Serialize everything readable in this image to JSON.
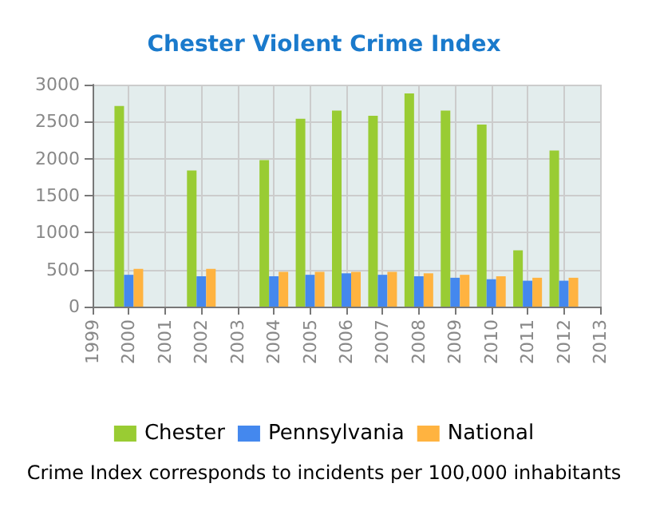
{
  "chart_data": {
    "type": "bar",
    "title": "Chester Violent Crime Index",
    "categories": [
      "1999",
      "2000",
      "2001",
      "2002",
      "2003",
      "2004",
      "2005",
      "2006",
      "2007",
      "2008",
      "2009",
      "2010",
      "2011",
      "2012",
      "2013"
    ],
    "series": [
      {
        "name": "Chester",
        "color": "#99cc33",
        "values": [
          null,
          2710,
          null,
          1840,
          null,
          1980,
          2540,
          2650,
          2580,
          2880,
          2650,
          2460,
          760,
          2110,
          null
        ]
      },
      {
        "name": "Pennsylvania",
        "color": "#4488ee",
        "values": [
          null,
          430,
          null,
          410,
          null,
          410,
          430,
          450,
          430,
          410,
          390,
          370,
          350,
          350,
          null
        ]
      },
      {
        "name": "National",
        "color": "#ffb340",
        "values": [
          null,
          510,
          null,
          510,
          null,
          470,
          470,
          470,
          470,
          450,
          430,
          410,
          390,
          390,
          null
        ]
      }
    ],
    "ylim": [
      0,
      3000
    ],
    "yticks": [
      0,
      500,
      1000,
      1500,
      2000,
      2500,
      3000
    ],
    "grid": true,
    "legend": "bottom",
    "annotations": [
      "Crime Index corresponds to incidents per 100,000 inhabitants"
    ]
  }
}
